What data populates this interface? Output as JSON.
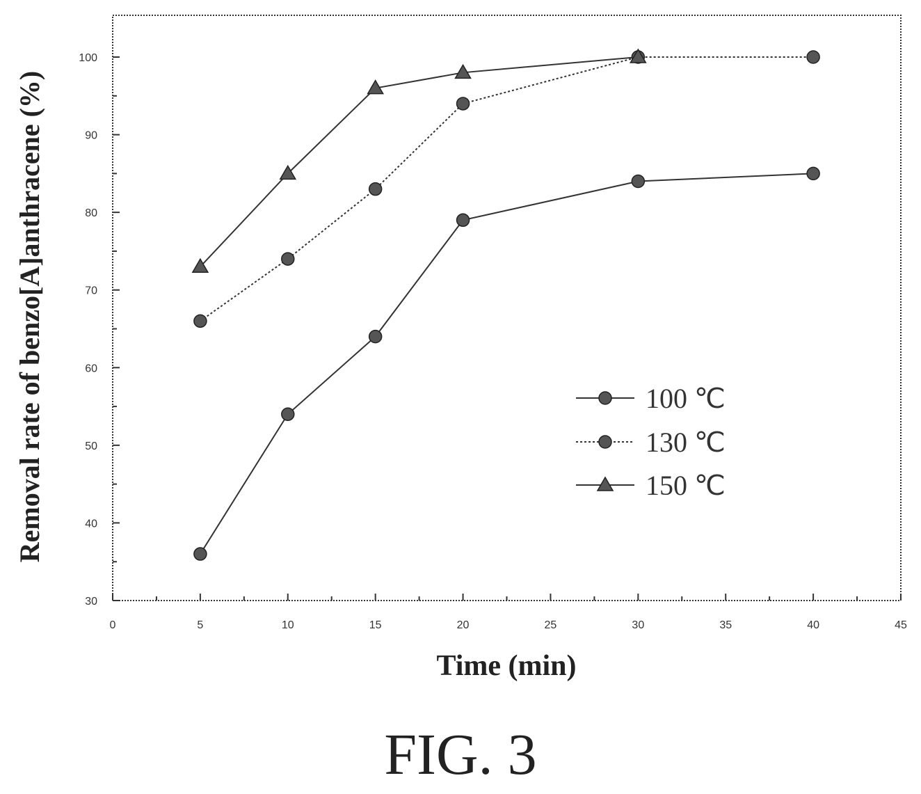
{
  "chart_data": {
    "type": "line",
    "xlabel": "Time (min)",
    "ylabel": "Removal rate of benzo[A]anthracene (%)",
    "xlim": [
      0,
      45
    ],
    "ylim": [
      30,
      100
    ],
    "xticks": [
      0,
      5,
      10,
      15,
      20,
      25,
      30,
      35,
      40,
      45
    ],
    "yticks": [
      30,
      40,
      50,
      60,
      70,
      80,
      90,
      100
    ],
    "grid": false,
    "legend_position": "right",
    "series": [
      {
        "name": "100 ℃",
        "marker": "circle",
        "line": "solid",
        "x": [
          5,
          10,
          15,
          20,
          30,
          40
        ],
        "y": [
          36,
          54,
          64,
          79,
          84,
          85
        ]
      },
      {
        "name": "130 ℃",
        "marker": "circle",
        "line": "dotted",
        "x": [
          5,
          10,
          15,
          20,
          30,
          40
        ],
        "y": [
          66,
          74,
          83,
          94,
          100,
          100
        ]
      },
      {
        "name": "150 ℃",
        "marker": "triangle",
        "line": "solid",
        "x": [
          5,
          10,
          15,
          20,
          30
        ],
        "y": [
          73,
          85,
          96,
          98,
          100
        ]
      }
    ]
  },
  "caption": "FIG. 3"
}
